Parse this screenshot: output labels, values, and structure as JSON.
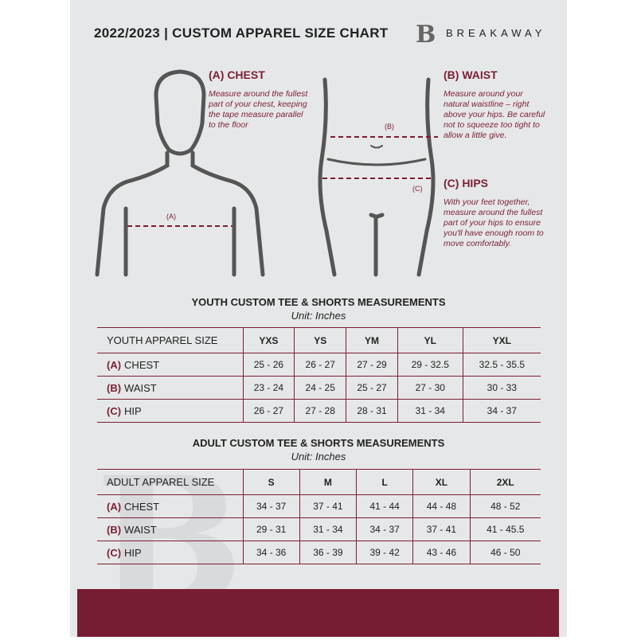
{
  "header": {
    "title": "2022/2023  |  CUSTOM APPAREL SIZE CHART",
    "brand": "BREAKAWAY",
    "logo_letter": "B"
  },
  "colors": {
    "accent": "#7a1f34",
    "background": "#e6e7e8"
  },
  "guides": {
    "chest": {
      "heading": "(A) CHEST",
      "text": "Measure around the fullest part of your chest, keeping the tape measure parallel to the floor",
      "marker": "(A)"
    },
    "waist": {
      "heading": "(B) WAIST",
      "text": "Measure around your natural waistline – right above your hips. Be careful not to squeeze too tight to allow a little give.",
      "marker": "(B)"
    },
    "hips": {
      "heading": "(C) HIPS",
      "text": "With your feet together, measure around the fullest part of your hips to ensure you'll have enough room to move comfortably.",
      "marker": "(C)"
    }
  },
  "youth": {
    "title": "YOUTH CUSTOM TEE & SHORTS MEASUREMENTS",
    "unit": "Unit: Inches",
    "size_label": "YOUTH APPAREL SIZE",
    "sizes": [
      "YXS",
      "YS",
      "YM",
      "YL",
      "YXL"
    ],
    "rows": [
      {
        "code": "(A)",
        "name": "CHEST",
        "values": [
          "25 - 26",
          "26 - 27",
          "27 - 29",
          "29 - 32.5",
          "32.5 - 35.5"
        ]
      },
      {
        "code": "(B)",
        "name": "WAIST",
        "values": [
          "23 - 24",
          "24 - 25",
          "25 - 27",
          "27 - 30",
          "30 - 33"
        ]
      },
      {
        "code": "(C)",
        "name": "HIP",
        "values": [
          "26 - 27",
          "27 - 28",
          "28 - 31",
          "31 - 34",
          "34 - 37"
        ]
      }
    ]
  },
  "adult": {
    "title": "ADULT CUSTOM TEE & SHORTS MEASUREMENTS",
    "unit": "Unit: Inches",
    "size_label": "ADULT APPAREL SIZE",
    "sizes": [
      "S",
      "M",
      "L",
      "XL",
      "2XL"
    ],
    "rows": [
      {
        "code": "(A)",
        "name": "CHEST",
        "values": [
          "34 - 37",
          "37 - 41",
          "41 - 44",
          "44 - 48",
          "48 - 52"
        ]
      },
      {
        "code": "(B)",
        "name": "WAIST",
        "values": [
          "29 - 31",
          "31 - 34",
          "34 - 37",
          "37 - 41",
          "41 - 45.5"
        ]
      },
      {
        "code": "(C)",
        "name": "HIP",
        "values": [
          "34 - 36",
          "36 - 39",
          "39 - 42",
          "43 - 46",
          "46 - 50"
        ]
      }
    ]
  }
}
